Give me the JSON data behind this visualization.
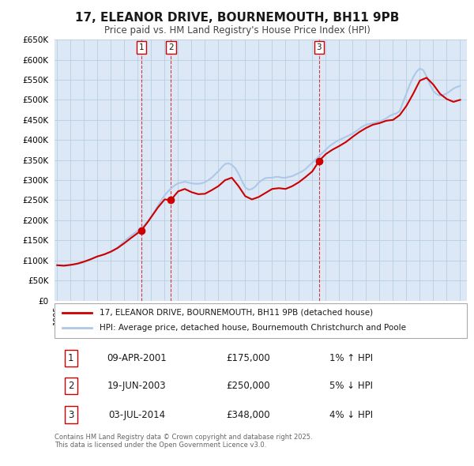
{
  "title": "17, ELEANOR DRIVE, BOURNEMOUTH, BH11 9PB",
  "subtitle": "Price paid vs. HM Land Registry's House Price Index (HPI)",
  "title_fontsize": 11,
  "subtitle_fontsize": 8.5,
  "background_color": "#ffffff",
  "plot_bg_color": "#dce8f5",
  "grid_color": "#b8cfe0",
  "hpi_color": "#adc8e8",
  "price_color": "#cc0000",
  "ylim": [
    0,
    650000
  ],
  "ytick_step": 50000,
  "legend_label_price": "17, ELEANOR DRIVE, BOURNEMOUTH, BH11 9PB (detached house)",
  "legend_label_hpi": "HPI: Average price, detached house, Bournemouth Christchurch and Poole",
  "sale_events": [
    {
      "label": "1",
      "date": "09-APR-2001",
      "price": 175000,
      "pct": "1%",
      "direction": "↑",
      "year": 2001.27
    },
    {
      "label": "2",
      "date": "19-JUN-2003",
      "price": 250000,
      "pct": "5%",
      "direction": "↓",
      "year": 2003.46
    },
    {
      "label": "3",
      "date": "03-JUL-2014",
      "price": 348000,
      "pct": "4%",
      "direction": "↓",
      "year": 2014.5
    }
  ],
  "footer": "Contains HM Land Registry data © Crown copyright and database right 2025.\nThis data is licensed under the Open Government Licence v3.0.",
  "hpi_data": {
    "years": [
      1995.0,
      1995.25,
      1995.5,
      1995.75,
      1996.0,
      1996.25,
      1996.5,
      1996.75,
      1997.0,
      1997.25,
      1997.5,
      1997.75,
      1998.0,
      1998.25,
      1998.5,
      1998.75,
      1999.0,
      1999.25,
      1999.5,
      1999.75,
      2000.0,
      2000.25,
      2000.5,
      2000.75,
      2001.0,
      2001.25,
      2001.5,
      2001.75,
      2002.0,
      2002.25,
      2002.5,
      2002.75,
      2003.0,
      2003.25,
      2003.5,
      2003.75,
      2004.0,
      2004.25,
      2004.5,
      2004.75,
      2005.0,
      2005.25,
      2005.5,
      2005.75,
      2006.0,
      2006.25,
      2006.5,
      2006.75,
      2007.0,
      2007.25,
      2007.5,
      2007.75,
      2008.0,
      2008.25,
      2008.5,
      2008.75,
      2009.0,
      2009.25,
      2009.5,
      2009.75,
      2010.0,
      2010.25,
      2010.5,
      2010.75,
      2011.0,
      2011.25,
      2011.5,
      2011.75,
      2012.0,
      2012.25,
      2012.5,
      2012.75,
      2013.0,
      2013.25,
      2013.5,
      2013.75,
      2014.0,
      2014.25,
      2014.5,
      2014.75,
      2015.0,
      2015.25,
      2015.5,
      2015.75,
      2016.0,
      2016.25,
      2016.5,
      2016.75,
      2017.0,
      2017.25,
      2017.5,
      2017.75,
      2018.0,
      2018.25,
      2018.5,
      2018.75,
      2019.0,
      2019.25,
      2019.5,
      2019.75,
      2020.0,
      2020.25,
      2020.5,
      2020.75,
      2021.0,
      2021.25,
      2021.5,
      2021.75,
      2022.0,
      2022.25,
      2022.5,
      2022.75,
      2023.0,
      2023.25,
      2023.5,
      2023.75,
      2024.0,
      2024.25,
      2024.5,
      2024.75,
      2025.0
    ],
    "values": [
      88000,
      87000,
      86000,
      87000,
      88000,
      89000,
      91000,
      93000,
      96000,
      99000,
      103000,
      107000,
      110000,
      112000,
      115000,
      118000,
      121000,
      126000,
      132000,
      140000,
      148000,
      155000,
      162000,
      168000,
      174000,
      180000,
      188000,
      198000,
      210000,
      222000,
      236000,
      250000,
      262000,
      272000,
      280000,
      287000,
      292000,
      294000,
      296000,
      294000,
      292000,
      291000,
      291000,
      292000,
      295000,
      300000,
      306000,
      314000,
      322000,
      332000,
      340000,
      342000,
      338000,
      330000,
      316000,
      298000,
      282000,
      276000,
      278000,
      284000,
      294000,
      300000,
      305000,
      306000,
      306000,
      308000,
      308000,
      306000,
      306000,
      308000,
      310000,
      314000,
      318000,
      322000,
      328000,
      336000,
      344000,
      352000,
      360000,
      368000,
      376000,
      384000,
      390000,
      396000,
      400000,
      404000,
      408000,
      412000,
      416000,
      422000,
      428000,
      434000,
      438000,
      440000,
      442000,
      444000,
      446000,
      450000,
      454000,
      460000,
      464000,
      466000,
      472000,
      494000,
      516000,
      538000,
      556000,
      570000,
      578000,
      574000,
      558000,
      538000,
      522000,
      514000,
      510000,
      512000,
      516000,
      522000,
      528000,
      532000,
      535000
    ]
  },
  "price_data": {
    "years": [
      1995.0,
      1995.5,
      1996.0,
      1996.5,
      1997.0,
      1997.5,
      1998.0,
      1998.5,
      1999.0,
      1999.5,
      2000.0,
      2000.5,
      2001.27,
      2001.75,
      2002.0,
      2002.5,
      2003.0,
      2003.46,
      2003.75,
      2004.0,
      2004.5,
      2005.0,
      2005.5,
      2006.0,
      2006.5,
      2007.0,
      2007.5,
      2008.0,
      2008.5,
      2009.0,
      2009.5,
      2010.0,
      2010.5,
      2011.0,
      2011.5,
      2012.0,
      2012.5,
      2013.0,
      2013.5,
      2014.0,
      2014.5,
      2015.0,
      2015.5,
      2016.0,
      2016.5,
      2017.0,
      2017.5,
      2018.0,
      2018.5,
      2019.0,
      2019.5,
      2020.0,
      2020.5,
      2021.0,
      2021.5,
      2022.0,
      2022.5,
      2023.0,
      2023.5,
      2024.0,
      2024.5,
      2025.0
    ],
    "values": [
      88000,
      87000,
      89000,
      92000,
      97000,
      103000,
      110000,
      115000,
      122000,
      131000,
      143000,
      156000,
      175000,
      196000,
      208000,
      232000,
      252000,
      250000,
      262000,
      272000,
      278000,
      270000,
      265000,
      266000,
      275000,
      285000,
      300000,
      306000,
      285000,
      260000,
      252000,
      258000,
      268000,
      278000,
      280000,
      278000,
      285000,
      295000,
      308000,
      322000,
      348000,
      365000,
      376000,
      385000,
      395000,
      408000,
      420000,
      430000,
      438000,
      442000,
      448000,
      450000,
      462000,
      485000,
      515000,
      548000,
      555000,
      538000,
      515000,
      502000,
      495000,
      500000
    ]
  },
  "xmin": 1994.8,
  "xmax": 2025.5
}
